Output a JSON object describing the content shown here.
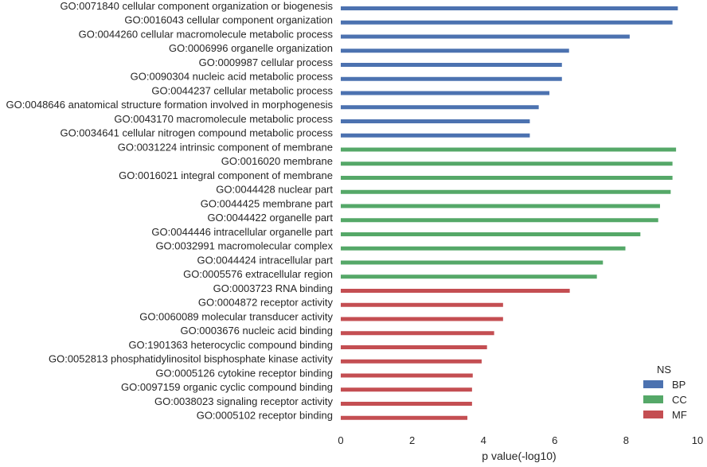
{
  "chart_data": {
    "type": "bar",
    "orientation": "horizontal",
    "xlabel": "p value(-log10)",
    "xlim": [
      0,
      10
    ],
    "xticks": [
      "0",
      "2",
      "4",
      "6",
      "8",
      "10"
    ],
    "grid": false,
    "legend": {
      "title": "NS",
      "placement": "bottom-right",
      "entries": [
        {
          "name": "BP",
          "color": "#4c72b0"
        },
        {
          "name": "CC",
          "color": "#55a868"
        },
        {
          "name": "MF",
          "color": "#c44e52"
        }
      ]
    },
    "bars": [
      {
        "label": "GO:0071840 cellular component organization or biogenesis",
        "value": 9.45,
        "group": "BP"
      },
      {
        "label": "GO:0016043 cellular component organization",
        "value": 9.3,
        "group": "BP"
      },
      {
        "label": "GO:0044260 cellular macromolecule metabolic process",
        "value": 8.1,
        "group": "BP"
      },
      {
        "label": "GO:0006996 organelle organization",
        "value": 6.4,
        "group": "BP"
      },
      {
        "label": "GO:0009987 cellular process",
        "value": 6.2,
        "group": "BP"
      },
      {
        "label": "GO:0090304 nucleic acid metabolic process",
        "value": 6.2,
        "group": "BP"
      },
      {
        "label": "GO:0044237 cellular metabolic process",
        "value": 5.85,
        "group": "BP"
      },
      {
        "label": "GO:0048646 anatomical structure formation involved in morphogenesis",
        "value": 5.55,
        "group": "BP"
      },
      {
        "label": "GO:0043170 macromolecule metabolic process",
        "value": 5.3,
        "group": "BP"
      },
      {
        "label": "GO:0034641 cellular nitrogen compound metabolic process",
        "value": 5.3,
        "group": "BP"
      },
      {
        "label": "GO:0031224 intrinsic component of membrane",
        "value": 9.4,
        "group": "CC"
      },
      {
        "label": "GO:0016020 membrane",
        "value": 9.3,
        "group": "CC"
      },
      {
        "label": "GO:0016021 integral component of membrane",
        "value": 9.3,
        "group": "CC"
      },
      {
        "label": "GO:0044428 nuclear part",
        "value": 9.25,
        "group": "CC"
      },
      {
        "label": "GO:0044425 membrane part",
        "value": 8.95,
        "group": "CC"
      },
      {
        "label": "GO:0044422 organelle part",
        "value": 8.9,
        "group": "CC"
      },
      {
        "label": "GO:0044446 intracellular organelle part",
        "value": 8.4,
        "group": "CC"
      },
      {
        "label": "GO:0032991 macromolecular complex",
        "value": 7.98,
        "group": "CC"
      },
      {
        "label": "GO:0044424 intracellular part",
        "value": 7.35,
        "group": "CC"
      },
      {
        "label": "GO:0005576 extracellular region",
        "value": 7.18,
        "group": "CC"
      },
      {
        "label": "GO:0003723 RNA binding",
        "value": 6.42,
        "group": "MF"
      },
      {
        "label": "GO:0004872 receptor activity",
        "value": 4.55,
        "group": "MF"
      },
      {
        "label": "GO:0060089 molecular transducer activity",
        "value": 4.55,
        "group": "MF"
      },
      {
        "label": "GO:0003676 nucleic acid binding",
        "value": 4.3,
        "group": "MF"
      },
      {
        "label": "GO:1901363 heterocyclic compound binding",
        "value": 4.1,
        "group": "MF"
      },
      {
        "label": "GO:0052813 phosphatidylinositol bisphosphate kinase activity",
        "value": 3.95,
        "group": "MF"
      },
      {
        "label": "GO:0005126 cytokine receptor binding",
        "value": 3.7,
        "group": "MF"
      },
      {
        "label": "GO:0097159 organic cyclic compound binding",
        "value": 3.68,
        "group": "MF"
      },
      {
        "label": "GO:0038023 signaling receptor activity",
        "value": 3.68,
        "group": "MF"
      },
      {
        "label": "GO:0005102 receptor binding",
        "value": 3.55,
        "group": "MF"
      }
    ]
  }
}
